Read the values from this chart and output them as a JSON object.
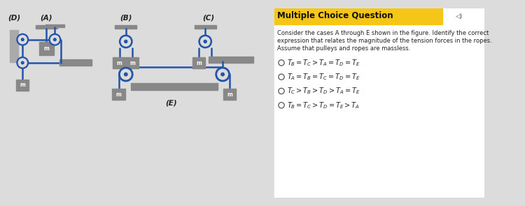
{
  "bg_color": "#dcdcdc",
  "title": "Multiple Choice Question",
  "question_lines": [
    "Consider the cases A through E shown in the figure. Identify the correct",
    "expression that relates the magnitude of the tension forces in the ropes.",
    "Assume that pulleys and ropes are massless."
  ],
  "option_math": [
    "$T_B = T_C > T_A = T_D = T_E$",
    "$T_A = T_B = T_C = T_D = T_E$",
    "$T_C > T_B > T_D > T_A = T_E$",
    "$T_B = T_C > T_D = T_E > T_A$"
  ],
  "rope_color": "#2255aa",
  "pulley_ring_color": "#2255aa",
  "pulley_fill": "#dcdcdc",
  "support_color": "#888888",
  "mass_color": "#888888",
  "wall_color": "#aaaaaa",
  "label_color": "#222222",
  "header_color": "#f5c518",
  "text_bg": "#f0f0f0"
}
